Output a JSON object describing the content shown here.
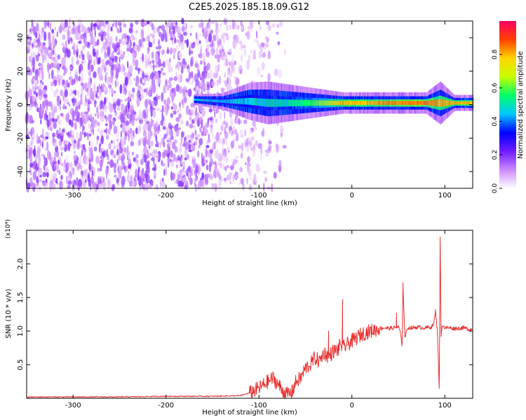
{
  "title": "C2E5.2025.185.18.09.G12",
  "chart_data": [
    {
      "type": "heatmap",
      "xlabel": "Height of straight line (km)",
      "ylabel": "Frequency (Hz)",
      "xlim": [
        -350,
        130
      ],
      "ylim": [
        -50,
        50
      ],
      "xticks": [
        -300,
        -200,
        -100,
        0,
        100
      ],
      "yticks": [
        -40,
        -20,
        0,
        20,
        40
      ],
      "colorbar": {
        "label": "Normalized spectral amplitude",
        "range": [
          0.0,
          1.0
        ],
        "ticks": [
          0.0,
          0.2,
          0.4,
          0.6,
          0.8
        ],
        "colormap": [
          "#ffffff",
          "#cc88ff",
          "#6f1bff",
          "#0000ff",
          "#00c8ff",
          "#00ff66",
          "#c8ff00",
          "#ffd400",
          "#ff4000",
          "#ff0066"
        ]
      },
      "noise_region_x": [
        -350,
        -110
      ],
      "signal_band": {
        "x": [
          -170,
          -140,
          -110,
          -90,
          -70,
          -50,
          -30,
          -10,
          0,
          20,
          50,
          80,
          95,
          110,
          130
        ],
        "center_freq_hz": [
          3,
          2,
          2,
          1,
          1,
          1,
          1,
          1,
          1,
          1,
          1,
          1,
          1,
          1,
          1
        ],
        "half_width_hz": [
          2,
          3,
          7,
          8,
          7,
          6,
          5,
          4,
          4,
          4,
          4,
          4,
          8,
          3,
          3
        ],
        "amplitude": [
          0.45,
          0.45,
          0.45,
          0.5,
          0.5,
          0.55,
          0.65,
          0.8,
          0.8,
          0.8,
          0.85,
          0.85,
          0.8,
          0.8,
          0.8
        ]
      }
    },
    {
      "type": "line",
      "xlabel": "Height of straight line (km)",
      "ylabel": "SNR (10 * v/v)",
      "y_multiplier": "(x10⁴)",
      "xlim": [
        -350,
        130
      ],
      "ylim": [
        0,
        2.5
      ],
      "xticks": [
        -300,
        -200,
        -100,
        0,
        100
      ],
      "yticks": [
        0.5,
        1.0,
        1.5,
        2.0
      ],
      "color": "#e8302f",
      "series": [
        {
          "x": [
            -350,
            -300,
            -250,
            -200,
            -150,
            -120,
            -110,
            -100,
            -95,
            -90,
            -85,
            -80,
            -75,
            -70,
            -65,
            -60,
            -55,
            -50,
            -45,
            -40,
            -35,
            -30,
            -25,
            -20,
            -15,
            -12,
            -10,
            -5,
            0,
            5,
            10,
            15,
            20,
            25,
            30,
            35,
            40,
            45,
            50,
            52,
            54,
            55,
            57,
            60,
            65,
            70,
            75,
            80,
            85,
            88,
            90,
            92,
            93,
            94,
            95,
            96,
            97,
            98,
            100,
            105,
            110,
            115,
            120,
            125,
            130
          ],
          "y": [
            0.02,
            0.02,
            0.02,
            0.03,
            0.03,
            0.04,
            0.08,
            0.15,
            0.2,
            0.25,
            0.3,
            0.22,
            0.12,
            0.06,
            0.08,
            0.25,
            0.3,
            0.45,
            0.5,
            0.6,
            0.55,
            0.68,
            0.62,
            0.7,
            0.72,
            0.82,
            0.75,
            0.8,
            0.85,
            0.9,
            0.95,
            0.98,
            1.0,
            1.02,
            1.04,
            1.05,
            1.04,
            1.05,
            1.06,
            1.0,
            0.75,
            1.7,
            0.9,
            1.05,
            1.05,
            1.06,
            1.05,
            1.05,
            1.06,
            1.1,
            1.3,
            1.0,
            0.6,
            0.12,
            2.4,
            0.9,
            1.1,
            1.08,
            1.05,
            1.05,
            1.04,
            1.04,
            1.05,
            1.03,
            1.02
          ]
        }
      ],
      "spikes": [
        {
          "x": -10,
          "y": 1.47
        },
        {
          "x": -25,
          "y": 1.0
        },
        {
          "x": 48,
          "y": 1.27
        },
        {
          "x": 55,
          "y": 1.72
        },
        {
          "x": 95,
          "y": 2.4
        }
      ]
    }
  ]
}
